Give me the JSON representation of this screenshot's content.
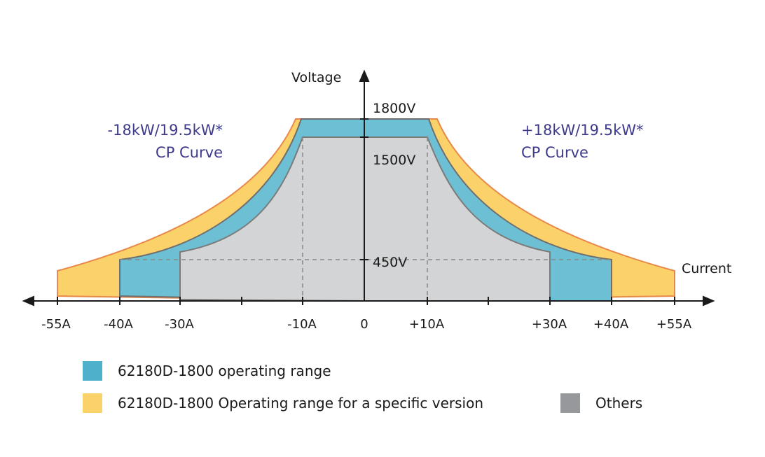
{
  "axes": {
    "y_label": "Voltage",
    "x_label": "Current",
    "x_ticks": [
      "-55A",
      "-40A",
      "-30A",
      "-10A",
      "0",
      "+10A",
      "+30A",
      "+40A",
      "+55A"
    ],
    "v_ticks": [
      "1800V",
      "1500V",
      "450V"
    ]
  },
  "annotations": {
    "left_power": "-18kW/19.5kW*",
    "left_curve": "CP Curve",
    "right_power": "+18kW/19.5kW*",
    "right_curve": "CP Curve"
  },
  "legend": {
    "blue": "62180D-1800 operating range",
    "yellow": "62180D-1800 Operating range for a specific version",
    "gray": "Others"
  },
  "colors": {
    "blue": "#4fb0cc",
    "yellow": "#fbd16a",
    "gray": "#d3d4d6",
    "accent": "#3d3a8c"
  }
}
